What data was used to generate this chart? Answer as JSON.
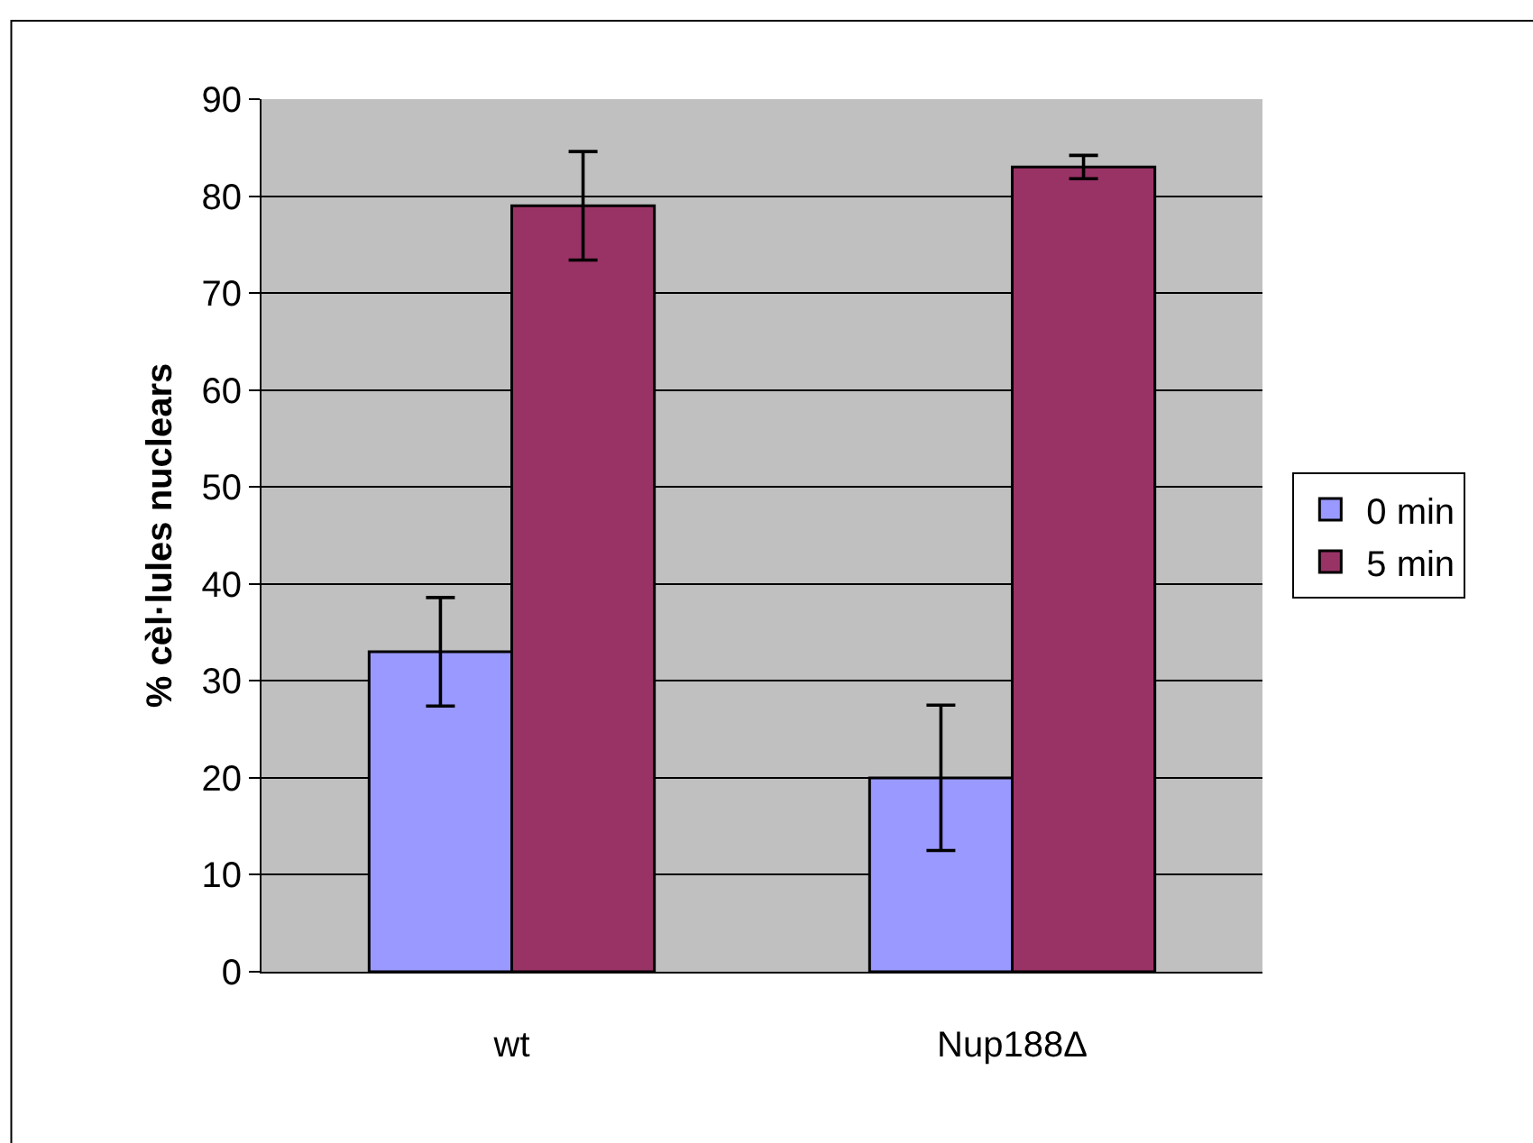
{
  "chart_data": {
    "type": "bar",
    "ylabel": "% cèl·lules nuclears",
    "categories": [
      "wt",
      "Nup188Δ"
    ],
    "series": [
      {
        "name": "0 min",
        "color": "#9999ff",
        "values": [
          33,
          20
        ],
        "errors": [
          5.6,
          7.5
        ]
      },
      {
        "name": "5 min",
        "color": "#993366",
        "values": [
          79,
          83
        ],
        "errors": [
          5.6,
          1.2
        ]
      }
    ],
    "ylim": [
      0,
      90
    ],
    "yticks": [
      0,
      10,
      20,
      30,
      40,
      50,
      60,
      70,
      80,
      90
    ],
    "grid": "y",
    "legend": "right"
  }
}
